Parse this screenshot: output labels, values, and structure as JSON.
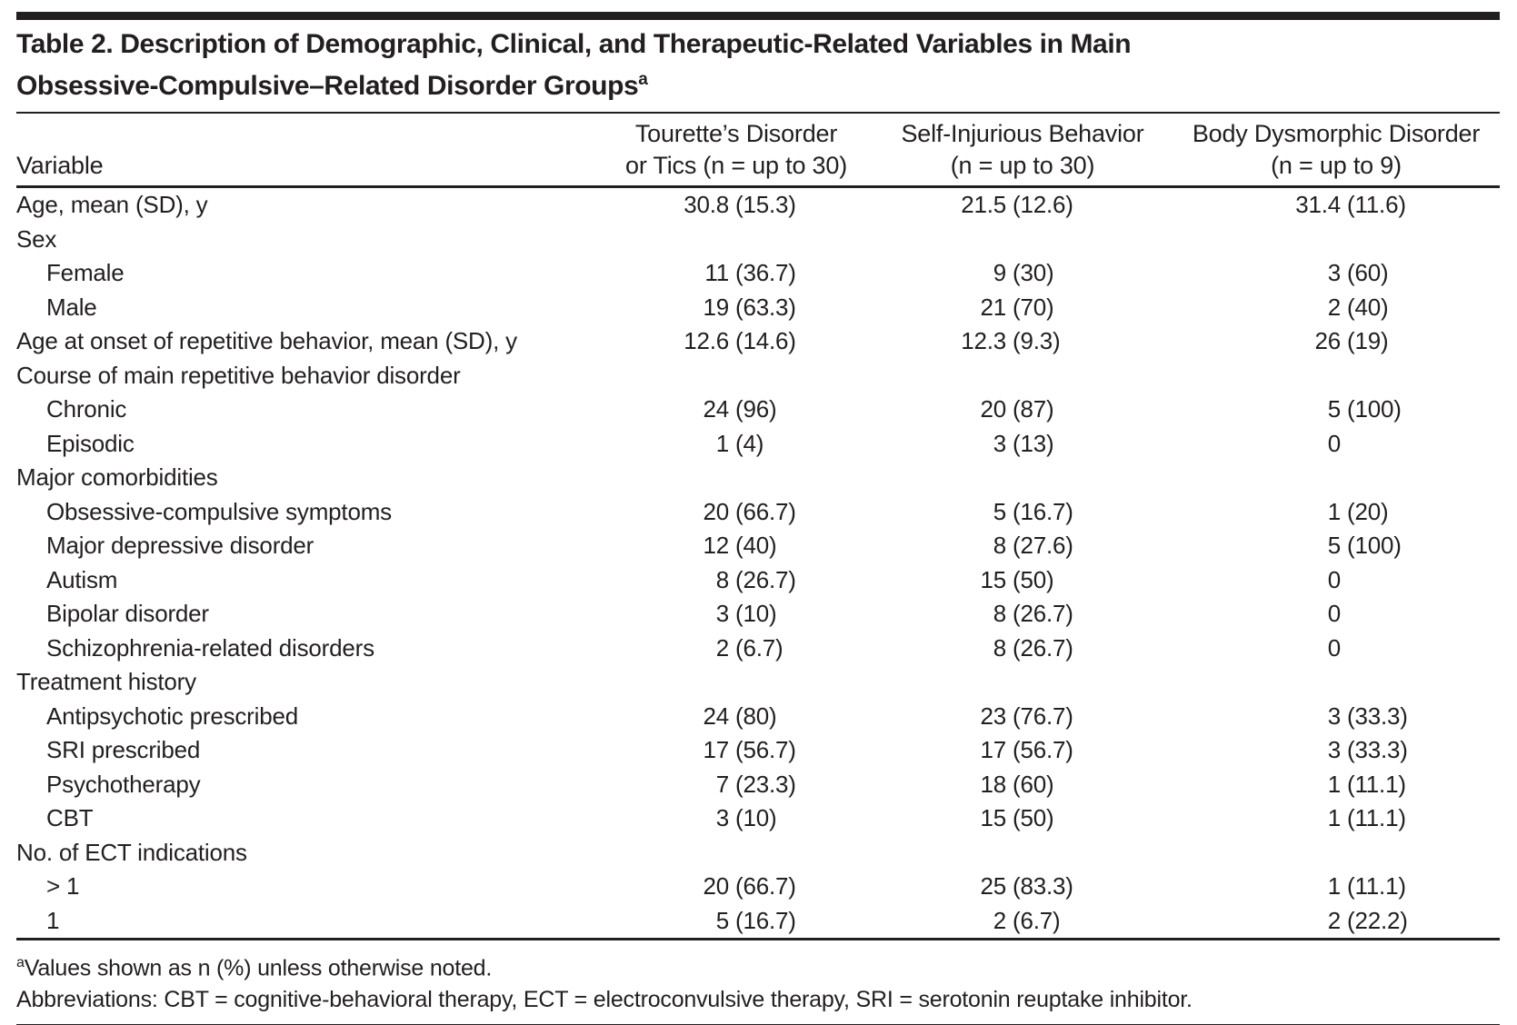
{
  "title": {
    "line1": "Table 2. Description of Demographic, Clinical, and Therapeutic-Related Variables in Main",
    "line2": "Obsessive-Compulsive–Related Disorder Groups",
    "superscript": "a"
  },
  "header": {
    "variable_label": "Variable",
    "columns": [
      {
        "line1": "Tourette’s Disorder",
        "line2": "or Tics (n = up to 30)"
      },
      {
        "line1": "Self-Injurious Behavior",
        "line2": "(n = up to 30)"
      },
      {
        "line1": "Body Dysmorphic Disorder",
        "line2": "(n = up to 9)"
      }
    ]
  },
  "rows": [
    {
      "label": "Age, mean (SD), y",
      "indent": 0,
      "values": [
        "30.8 (15.3)",
        "21.5 (12.6)",
        "31.4 (11.6)"
      ]
    },
    {
      "label": "Sex",
      "indent": 0,
      "values": [
        "",
        "",
        ""
      ]
    },
    {
      "label": "Female",
      "indent": 1,
      "values": [
        "11 (36.7)",
        "9 (30)",
        "3 (60)"
      ]
    },
    {
      "label": "Male",
      "indent": 1,
      "values": [
        "19 (63.3)",
        "21 (70)",
        "2 (40)"
      ]
    },
    {
      "label": "Age at onset of repetitive behavior, mean (SD), y",
      "indent": 0,
      "values": [
        "12.6 (14.6)",
        "12.3 (9.3)",
        "26 (19)"
      ]
    },
    {
      "label": "Course of main repetitive behavior disorder",
      "indent": 0,
      "values": [
        "",
        "",
        ""
      ]
    },
    {
      "label": "Chronic",
      "indent": 1,
      "values": [
        "24 (96)",
        "20 (87)",
        "5 (100)"
      ]
    },
    {
      "label": "Episodic",
      "indent": 1,
      "values": [
        "1 (4)",
        "3 (13)",
        "0"
      ]
    },
    {
      "label": "Major comorbidities",
      "indent": 0,
      "values": [
        "",
        "",
        ""
      ]
    },
    {
      "label": "Obsessive-compulsive symptoms",
      "indent": 1,
      "values": [
        "20 (66.7)",
        "5 (16.7)",
        "1 (20)"
      ]
    },
    {
      "label": "Major depressive disorder",
      "indent": 1,
      "values": [
        "12 (40)",
        "8 (27.6)",
        "5 (100)"
      ]
    },
    {
      "label": "Autism",
      "indent": 1,
      "values": [
        "8 (26.7)",
        "15 (50)",
        "0"
      ]
    },
    {
      "label": "Bipolar disorder",
      "indent": 1,
      "values": [
        "3 (10)",
        "8 (26.7)",
        "0"
      ]
    },
    {
      "label": "Schizophrenia-related disorders",
      "indent": 1,
      "values": [
        "2 (6.7)",
        "8 (26.7)",
        "0"
      ]
    },
    {
      "label": "Treatment history",
      "indent": 0,
      "values": [
        "",
        "",
        ""
      ]
    },
    {
      "label": "Antipsychotic prescribed",
      "indent": 1,
      "values": [
        "24 (80)",
        "23 (76.7)",
        "3 (33.3)"
      ]
    },
    {
      "label": "SRI prescribed",
      "indent": 1,
      "values": [
        "17 (56.7)",
        "17 (56.7)",
        "3 (33.3)"
      ]
    },
    {
      "label": "Psychotherapy",
      "indent": 1,
      "values": [
        "7 (23.3)",
        "18 (60)",
        "1 (11.1)"
      ]
    },
    {
      "label": "CBT",
      "indent": 1,
      "values": [
        "3 (10)",
        "15 (50)",
        "1 (11.1)"
      ]
    },
    {
      "label": "No. of ECT indications",
      "indent": 0,
      "values": [
        "",
        "",
        ""
      ]
    },
    {
      "label": "> 1",
      "indent": 1,
      "values": [
        "20 (66.7)",
        "25 (83.3)",
        "1 (11.1)"
      ]
    },
    {
      "label": "1",
      "indent": 1,
      "values": [
        "5 (16.7)",
        "2 (6.7)",
        "2 (22.2)"
      ]
    }
  ],
  "footnotes": {
    "note_marker": "a",
    "note_text": "Values shown as n (%) unless otherwise noted.",
    "abbreviations": "Abbreviations: CBT = cognitive-behavioral therapy, ECT = electroconvulsive therapy, SRI = serotonin reuptake inhibitor."
  },
  "colors": {
    "text": "#231f20",
    "rule": "#231f20",
    "background": "#ffffff"
  }
}
